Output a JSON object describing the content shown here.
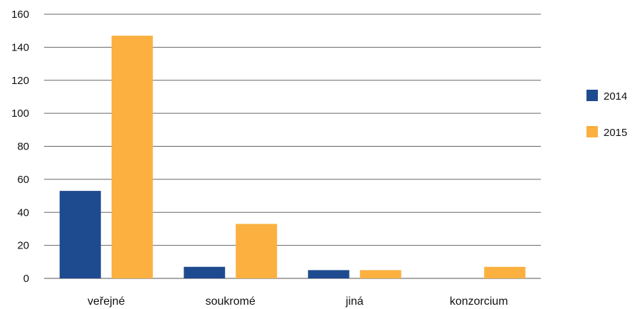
{
  "chart_data": {
    "type": "bar",
    "categories": [
      "veřejné",
      "soukromé",
      "jiná",
      "konzorcium"
    ],
    "series": [
      {
        "name": "2014",
        "values": [
          53,
          7,
          5,
          0
        ],
        "color": "#1e4b8f"
      },
      {
        "name": "2015",
        "values": [
          147,
          33,
          5,
          7
        ],
        "color": "#fbb040"
      }
    ],
    "ylim": [
      0,
      160
    ],
    "yticks": [
      0,
      20,
      40,
      60,
      80,
      100,
      120,
      140,
      160
    ],
    "grid": true,
    "legend": "right",
    "title": "",
    "xlabel": "",
    "ylabel": ""
  }
}
